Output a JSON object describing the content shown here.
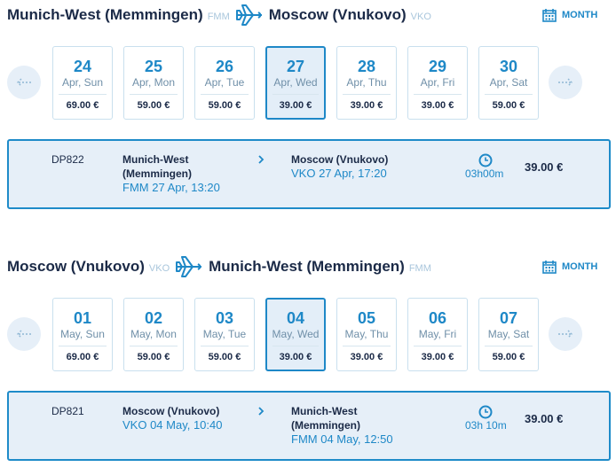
{
  "sections": [
    {
      "from": "Munich-West (Memmingen)",
      "from_code": "FMM",
      "to": "Moscow (Vnukovo)",
      "to_code": "VKO",
      "month": "MONTH",
      "days": [
        {
          "day": "24",
          "date": "Apr, Sun",
          "price": "69.00 €"
        },
        {
          "day": "25",
          "date": "Apr, Mon",
          "price": "59.00 €"
        },
        {
          "day": "26",
          "date": "Apr, Tue",
          "price": "59.00 €"
        },
        {
          "day": "27",
          "date": "Apr, Wed",
          "price": "39.00 €",
          "selected": true
        },
        {
          "day": "28",
          "date": "Apr, Thu",
          "price": "39.00 €"
        },
        {
          "day": "29",
          "date": "Apr, Fri",
          "price": "39.00 €"
        },
        {
          "day": "30",
          "date": "Apr, Sat",
          "price": "59.00 €"
        }
      ],
      "flight": {
        "number": "DP822",
        "from_name": "Munich-West (Memmingen)",
        "from_time": "FMM 27 Apr, 13:20",
        "to_name": "Moscow (Vnukovo)",
        "to_time": "VKO 27 Apr, 17:20",
        "duration": "03h00m",
        "price": "39.00 €"
      }
    },
    {
      "from": "Moscow (Vnukovo)",
      "from_code": "VKO",
      "to": "Munich-West (Memmingen)",
      "to_code": "FMM",
      "month": "MONTH",
      "days": [
        {
          "day": "01",
          "date": "May, Sun",
          "price": "69.00 €"
        },
        {
          "day": "02",
          "date": "May, Mon",
          "price": "59.00 €"
        },
        {
          "day": "03",
          "date": "May, Tue",
          "price": "59.00 €"
        },
        {
          "day": "04",
          "date": "May, Wed",
          "price": "39.00 €",
          "selected": true
        },
        {
          "day": "05",
          "date": "May, Thu",
          "price": "39.00 €"
        },
        {
          "day": "06",
          "date": "May, Fri",
          "price": "39.00 €"
        },
        {
          "day": "07",
          "date": "May, Sat",
          "price": "59.00 €"
        }
      ],
      "flight": {
        "number": "DP821",
        "from_name": "Moscow (Vnukovo)",
        "from_time": "VKO 04 May, 10:40",
        "to_name": "Munich-West (Memmingen)",
        "to_time": "FMM 04 May, 12:50",
        "duration": "03h 10m",
        "price": "39.00 €"
      }
    }
  ]
}
